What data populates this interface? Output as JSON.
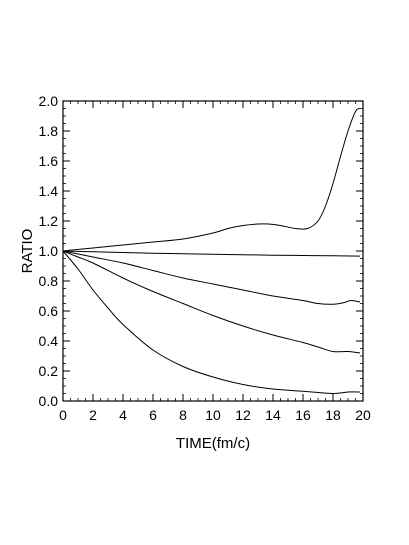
{
  "chart_data": {
    "type": "line",
    "title": "",
    "xlabel": "TIME(fm/c)",
    "ylabel": "RATIO",
    "xlim": [
      0,
      20
    ],
    "ylim": [
      0,
      2.0
    ],
    "xticks": [
      0,
      2,
      4,
      6,
      8,
      10,
      12,
      14,
      16,
      18,
      20
    ],
    "yticks": [
      0.0,
      0.2,
      0.4,
      0.6,
      0.8,
      1.0,
      1.2,
      1.4,
      1.6,
      1.8,
      2.0
    ],
    "xtick_labels": [
      "0",
      "2",
      "4",
      "6",
      "8",
      "10",
      "12",
      "14",
      "16",
      "18",
      "20"
    ],
    "ytick_labels": [
      "0.0",
      "0.2",
      "0.4",
      "0.6",
      "0.8",
      "1.0",
      "1.2",
      "1.4",
      "1.6",
      "1.8",
      "2.0"
    ],
    "grid": false,
    "legend": "none",
    "line_color": "#000000",
    "series": [
      {
        "x": [
          0,
          1,
          2,
          4,
          6,
          8,
          10,
          11,
          12,
          13,
          13.7,
          14.5,
          15.5,
          16.3,
          17,
          17.5,
          18,
          18.5,
          19,
          19.5,
          19.8
        ],
        "y": [
          1.0,
          1.01,
          1.02,
          1.04,
          1.06,
          1.08,
          1.12,
          1.15,
          1.17,
          1.18,
          1.18,
          1.17,
          1.15,
          1.15,
          1.2,
          1.3,
          1.45,
          1.63,
          1.8,
          1.93,
          1.95
        ]
      },
      {
        "x": [
          0,
          2,
          4,
          6,
          8,
          10,
          12,
          14,
          16,
          18,
          19.8
        ],
        "y": [
          1.0,
          0.995,
          0.99,
          0.985,
          0.982,
          0.978,
          0.975,
          0.972,
          0.97,
          0.968,
          0.966
        ]
      },
      {
        "x": [
          0,
          2,
          4,
          6,
          8,
          10,
          12,
          14,
          16,
          17,
          18,
          18.7,
          19.2,
          19.8
        ],
        "y": [
          1.0,
          0.96,
          0.92,
          0.87,
          0.82,
          0.78,
          0.74,
          0.7,
          0.67,
          0.65,
          0.645,
          0.655,
          0.67,
          0.66
        ]
      },
      {
        "x": [
          0,
          1,
          2,
          4,
          6,
          8,
          10,
          12,
          14,
          16,
          17,
          18,
          19,
          19.8
        ],
        "y": [
          1.0,
          0.96,
          0.92,
          0.82,
          0.73,
          0.65,
          0.57,
          0.5,
          0.44,
          0.39,
          0.36,
          0.33,
          0.33,
          0.32
        ]
      },
      {
        "x": [
          0,
          1,
          2,
          3,
          4,
          6,
          8,
          10,
          12,
          14,
          16,
          18,
          19,
          19.8
        ],
        "y": [
          1.0,
          0.88,
          0.74,
          0.62,
          0.51,
          0.34,
          0.23,
          0.16,
          0.11,
          0.08,
          0.065,
          0.05,
          0.06,
          0.06
        ]
      }
    ]
  }
}
